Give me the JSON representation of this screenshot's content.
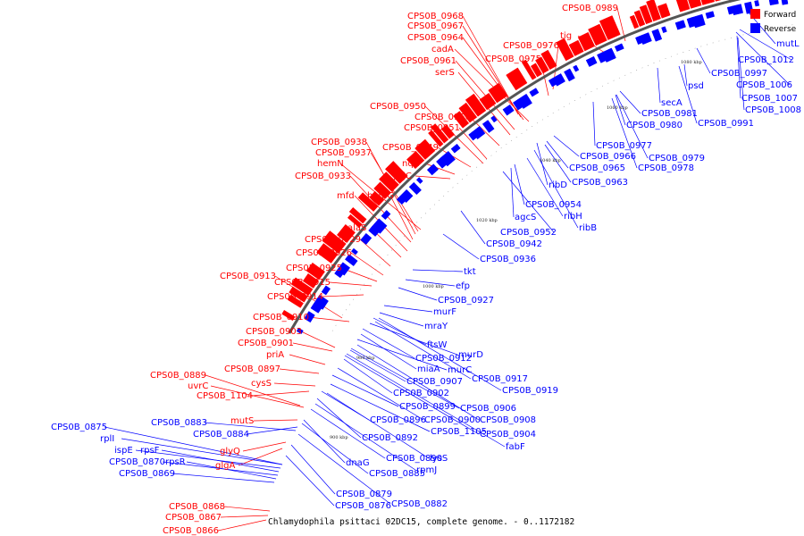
{
  "colors": {
    "forward": "#ff0000",
    "reverse": "#0000ff",
    "backbone": "#555555"
  },
  "legend": {
    "forward": "Forward",
    "reverse": "Reverse"
  },
  "caption": "Chlamydophila psittaci 02DC15, complete genome. - 0..1172182",
  "ticks": [
    "900 kbp",
    "980 kbp",
    "1000 kbp",
    "1020 kbp",
    "1040 kbp",
    "1060 kbp",
    "1080 kbp"
  ],
  "forward_labels": [
    "CPS0B_0989",
    "CPS0B_0968",
    "CPS0B_0967",
    "CPS0B_0964",
    "tig",
    "CPS0B_0976",
    "cadA",
    "CPS0B_0961",
    "CPS0B_0975",
    "serS",
    "CPS0B_0950",
    "CPS0B_0956",
    "CPS0B_0951",
    "CPS0B_0938",
    "CPS0B_0949",
    "CPS0B_0937",
    "hemN",
    "nqrF",
    "CPS0B_0933",
    "yajC",
    "mfd",
    "hemG",
    "alaS",
    "CPS0B_0929",
    "CPS0B_0926",
    "CPS0B_0925",
    "CPS0B_0913",
    "CPS0B_0915",
    "CPS0B_0914",
    "CPS0B_0910",
    "CPS0B_0903",
    "CPS0B_0901",
    "priA",
    "CPS0B_0889",
    "CPS0B_0897",
    "uvrC",
    "cysS",
    "CPS0B_1104",
    "mutS",
    "glyQ",
    "glgA",
    "CPS0B_0868",
    "CPS0B_0867",
    "CPS0B_0866"
  ],
  "reverse_labels": [
    "mutL",
    "CPS0B_1012",
    "CPS0B_0997",
    "CPS0B_1006",
    "CPS0B_1007",
    "CPS0B_1008",
    "psd",
    "secA",
    "CPS0B_0991",
    "CPS0B_0981",
    "CPS0B_0980",
    "CPS0B_0977",
    "CPS0B_0979",
    "CPS0B_0966",
    "CPS0B_0978",
    "CPS0B_0965",
    "CPS0B_0963",
    "ribD",
    "CPS0B_0954",
    "ribH",
    "agcS",
    "ribB",
    "CPS0B_0952",
    "CPS0B_0942",
    "CPS0B_0936",
    "tkt",
    "efp",
    "CPS0B_0927",
    "murF",
    "mraY",
    "ftsW",
    "murD",
    "CPS0B_0912",
    "miaA",
    "murC",
    "CPS0B_0917",
    "CPS0B_0907",
    "CPS0B_0919",
    "CPS0B_0902",
    "CPS0B_0899",
    "CPS0B_0906",
    "CPS0B_0896",
    "CPS0B_0900",
    "CPS0B_0908",
    "CPS0B_1105",
    "CPS0B_0904",
    "CPS0B_0892",
    "fabF",
    "CPS0B_0890",
    "lysS",
    "dnaG",
    "rpmJ",
    "CPS0B_0885",
    "CPS0B_0879",
    "CPS0B_0876",
    "CPS0B_0882",
    "CPS0B_0875",
    "rplI",
    "CPS0B_0883",
    "CPS0B_0884",
    "ispE",
    "rpsF",
    "CPS0B_0870",
    "rpsR",
    "CPS0B_0869"
  ]
}
